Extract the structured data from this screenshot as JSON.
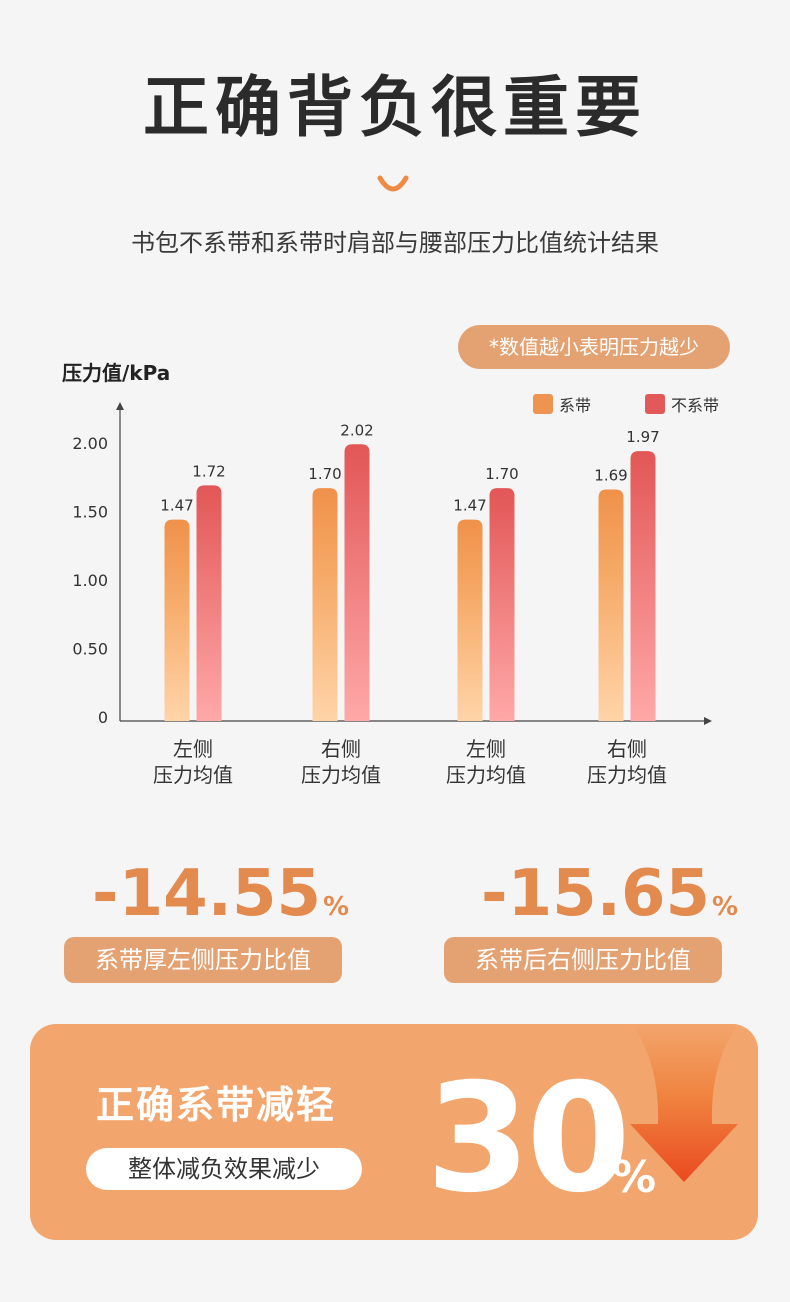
{
  "header": {
    "title": "正确背负很重要",
    "subtitle": "书包不系带和系带时肩部与腰部压力比值统计结果"
  },
  "note": "*数值越小表明压力越少",
  "chart_data": {
    "type": "bar",
    "ylabel": "压力值/kPa",
    "categories": [
      [
        "左侧",
        "压力均值"
      ],
      [
        "右侧",
        "压力均值"
      ],
      [
        "左侧",
        "压力均值"
      ],
      [
        "右侧",
        "压力均值"
      ]
    ],
    "series": [
      {
        "name": "系带",
        "values": [
          1.47,
          1.7,
          1.47,
          1.69
        ],
        "labels": [
          "1.47",
          "1.70",
          "1.47",
          "1.69"
        ]
      },
      {
        "name": "不系带",
        "values": [
          1.72,
          2.02,
          1.7,
          1.97
        ],
        "labels": [
          "1.72",
          "2.02",
          "1.70",
          "1.97"
        ]
      }
    ],
    "yticks": [
      0,
      0.5,
      1.0,
      1.5,
      2.0
    ],
    "ytick_labels": [
      "0",
      "0.50",
      "1.00",
      "1.50",
      "2.00"
    ],
    "ylim": [
      0,
      2.2
    ],
    "legend_position": "top-right",
    "grid": false,
    "colors": {
      "series1_top": "#f0914a",
      "series1_bottom": "#ffd4a8",
      "series2_top": "#e25656",
      "series2_bottom": "#ffa8a8"
    }
  },
  "stats": [
    {
      "value": "-14.55",
      "unit": "%",
      "label": "系带厚左侧压力比值"
    },
    {
      "value": "-15.65",
      "unit": "%",
      "label": "系带后右侧压力比值"
    }
  ],
  "summary": {
    "title": "正确系带减轻",
    "pill": "整体减负效果减少",
    "value": "30",
    "unit": "%"
  },
  "colors": {
    "accent": "#e38a4e",
    "pill": "#e4a273",
    "card": "#f2a56c",
    "arrow_top": "#f28c45",
    "arrow_bottom": "#ea4a20"
  },
  "icons": [
    "smile-icon",
    "down-arrow-icon"
  ]
}
